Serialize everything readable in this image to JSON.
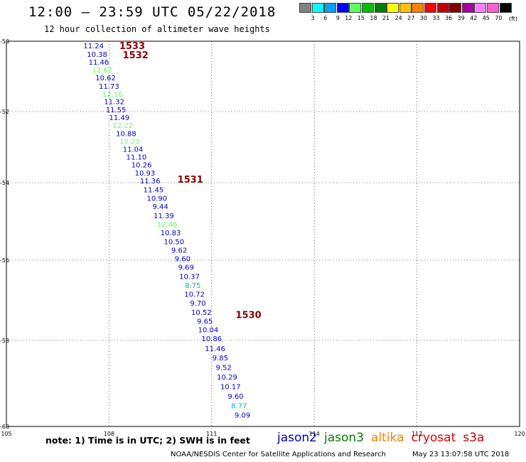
{
  "header": {
    "title": "12:00 – 23:59 UTC 05/22/2018",
    "subtitle": "12 hour collection of altimeter wave heights"
  },
  "scale": {
    "colors": [
      "#808080",
      "#00ffff",
      "#00a0ff",
      "#0000ff",
      "#60ff60",
      "#00c000",
      "#008000",
      "#ffff00",
      "#ffc000",
      "#ff8000",
      "#ff0000",
      "#c00000",
      "#800000",
      "#a000a0",
      "#ff80ff",
      "#ff60d0",
      "#000000"
    ],
    "labels": [
      "3",
      "6",
      "9",
      "12",
      "15",
      "18",
      "21",
      "24",
      "27",
      "30",
      "33",
      "36",
      "39",
      "42",
      "45",
      "70"
    ],
    "unit": "(ft)"
  },
  "note": "note: 1) Time is in UTC; 2) SWH is in feet",
  "footer": "NOAA/NESDIS Center for Satellite Applications and Research",
  "timestamp": "May 23 13:07:58 UTC 2018",
  "legend": [
    {
      "label": "jason2",
      "color": "#0000c0"
    },
    {
      "label": "jason3",
      "color": "#008000"
    },
    {
      "label": "altika",
      "color": "#ff8000"
    },
    {
      "label": "cryosat",
      "color": "#e00000"
    },
    {
      "label": "s3a",
      "color": "#c00000"
    }
  ],
  "chart_data": {
    "type": "scatter",
    "title": "12:00 – 23:59 UTC 05/22/2018",
    "xlim": [
      105,
      120
    ],
    "ylim": [
      -60,
      -50
    ],
    "x_ticks": [
      105,
      108,
      111,
      114,
      117,
      120
    ],
    "y_ticks": [
      -50,
      -52,
      -54,
      -56,
      -58,
      -60
    ],
    "grid": true,
    "time_labels": [
      {
        "label": "1533",
        "x": 108.3,
        "y": -50.12
      },
      {
        "label": "1532",
        "x": 108.4,
        "y": -50.38
      },
      {
        "label": "1531",
        "x": 110.0,
        "y": -53.9
      },
      {
        "label": "1530",
        "x": 111.7,
        "y": -57.35
      }
    ],
    "points": [
      {
        "x": 107.55,
        "y": -50.12,
        "v": 11.24
      },
      {
        "x": 107.65,
        "y": -50.36,
        "v": 10.38
      },
      {
        "x": 107.7,
        "y": -50.59,
        "v": 11.46
      },
      {
        "x": 107.8,
        "y": -50.81,
        "v": 12.67
      },
      {
        "x": 107.9,
        "y": -51.03,
        "v": 10.62
      },
      {
        "x": 108.0,
        "y": -51.27,
        "v": 11.73
      },
      {
        "x": 108.1,
        "y": -51.49,
        "v": 12.16
      },
      {
        "x": 108.15,
        "y": -51.71,
        "v": 11.32
      },
      {
        "x": 108.2,
        "y": -51.94,
        "v": 11.55
      },
      {
        "x": 108.3,
        "y": -52.16,
        "v": 11.49
      },
      {
        "x": 108.4,
        "y": -52.38,
        "v": 12.22
      },
      {
        "x": 108.5,
        "y": -52.61,
        "v": 10.88
      },
      {
        "x": 108.6,
        "y": -52.83,
        "v": 12.23
      },
      {
        "x": 108.7,
        "y": -53.05,
        "v": 11.04
      },
      {
        "x": 108.8,
        "y": -53.27,
        "v": 11.1
      },
      {
        "x": 108.95,
        "y": -53.49,
        "v": 10.26
      },
      {
        "x": 109.05,
        "y": -53.72,
        "v": 10.93
      },
      {
        "x": 109.2,
        "y": -53.94,
        "v": 11.36
      },
      {
        "x": 109.3,
        "y": -54.17,
        "v": 11.45
      },
      {
        "x": 109.4,
        "y": -54.39,
        "v": 10.9
      },
      {
        "x": 109.5,
        "y": -54.61,
        "v": 9.44
      },
      {
        "x": 109.6,
        "y": -54.84,
        "v": 11.39
      },
      {
        "x": 109.7,
        "y": -55.06,
        "v": 12.46
      },
      {
        "x": 109.8,
        "y": -55.28,
        "v": 10.83
      },
      {
        "x": 109.9,
        "y": -55.51,
        "v": 10.5
      },
      {
        "x": 110.05,
        "y": -55.73,
        "v": 9.62
      },
      {
        "x": 110.15,
        "y": -55.95,
        "v": 9.6
      },
      {
        "x": 110.25,
        "y": -56.17,
        "v": 9.69
      },
      {
        "x": 110.35,
        "y": -56.4,
        "v": 10.37
      },
      {
        "x": 110.45,
        "y": -56.62,
        "v": 8.75
      },
      {
        "x": 110.5,
        "y": -56.84,
        "v": 10.72
      },
      {
        "x": 110.6,
        "y": -57.06,
        "v": 9.7
      },
      {
        "x": 110.7,
        "y": -57.29,
        "v": 10.52
      },
      {
        "x": 110.8,
        "y": -57.51,
        "v": 9.65
      },
      {
        "x": 110.9,
        "y": -57.73,
        "v": 10.04
      },
      {
        "x": 111.0,
        "y": -57.95,
        "v": 10.86
      },
      {
        "x": 111.1,
        "y": -58.18,
        "v": 11.46
      },
      {
        "x": 111.25,
        "y": -58.4,
        "v": 9.85
      },
      {
        "x": 111.35,
        "y": -58.62,
        "v": 9.52
      },
      {
        "x": 111.45,
        "y": -58.84,
        "v": 10.29
      },
      {
        "x": 111.55,
        "y": -59.07,
        "v": 10.17
      },
      {
        "x": 111.7,
        "y": -59.29,
        "v": 9.6
      },
      {
        "x": 111.8,
        "y": -59.51,
        "v": 8.77
      },
      {
        "x": 111.9,
        "y": -59.73,
        "v": 9.09
      }
    ]
  }
}
